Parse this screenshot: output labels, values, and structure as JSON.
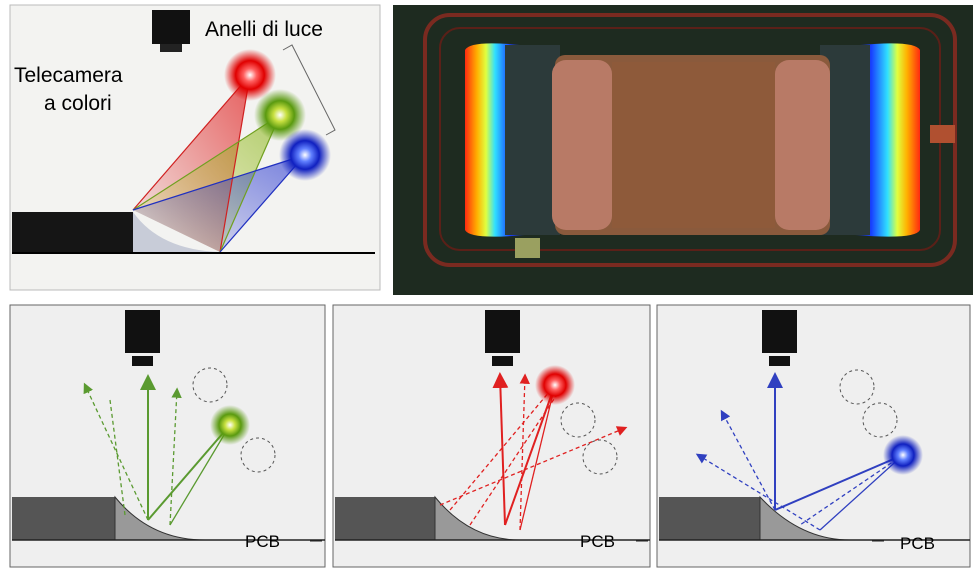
{
  "top_left": {
    "rings_label": "Anelli di luce",
    "camera_label": [
      "Telecamera",
      "a colori"
    ]
  },
  "panels": [
    {
      "label": "PCB"
    },
    {
      "label": "PCB"
    },
    {
      "label": "PCB"
    }
  ]
}
